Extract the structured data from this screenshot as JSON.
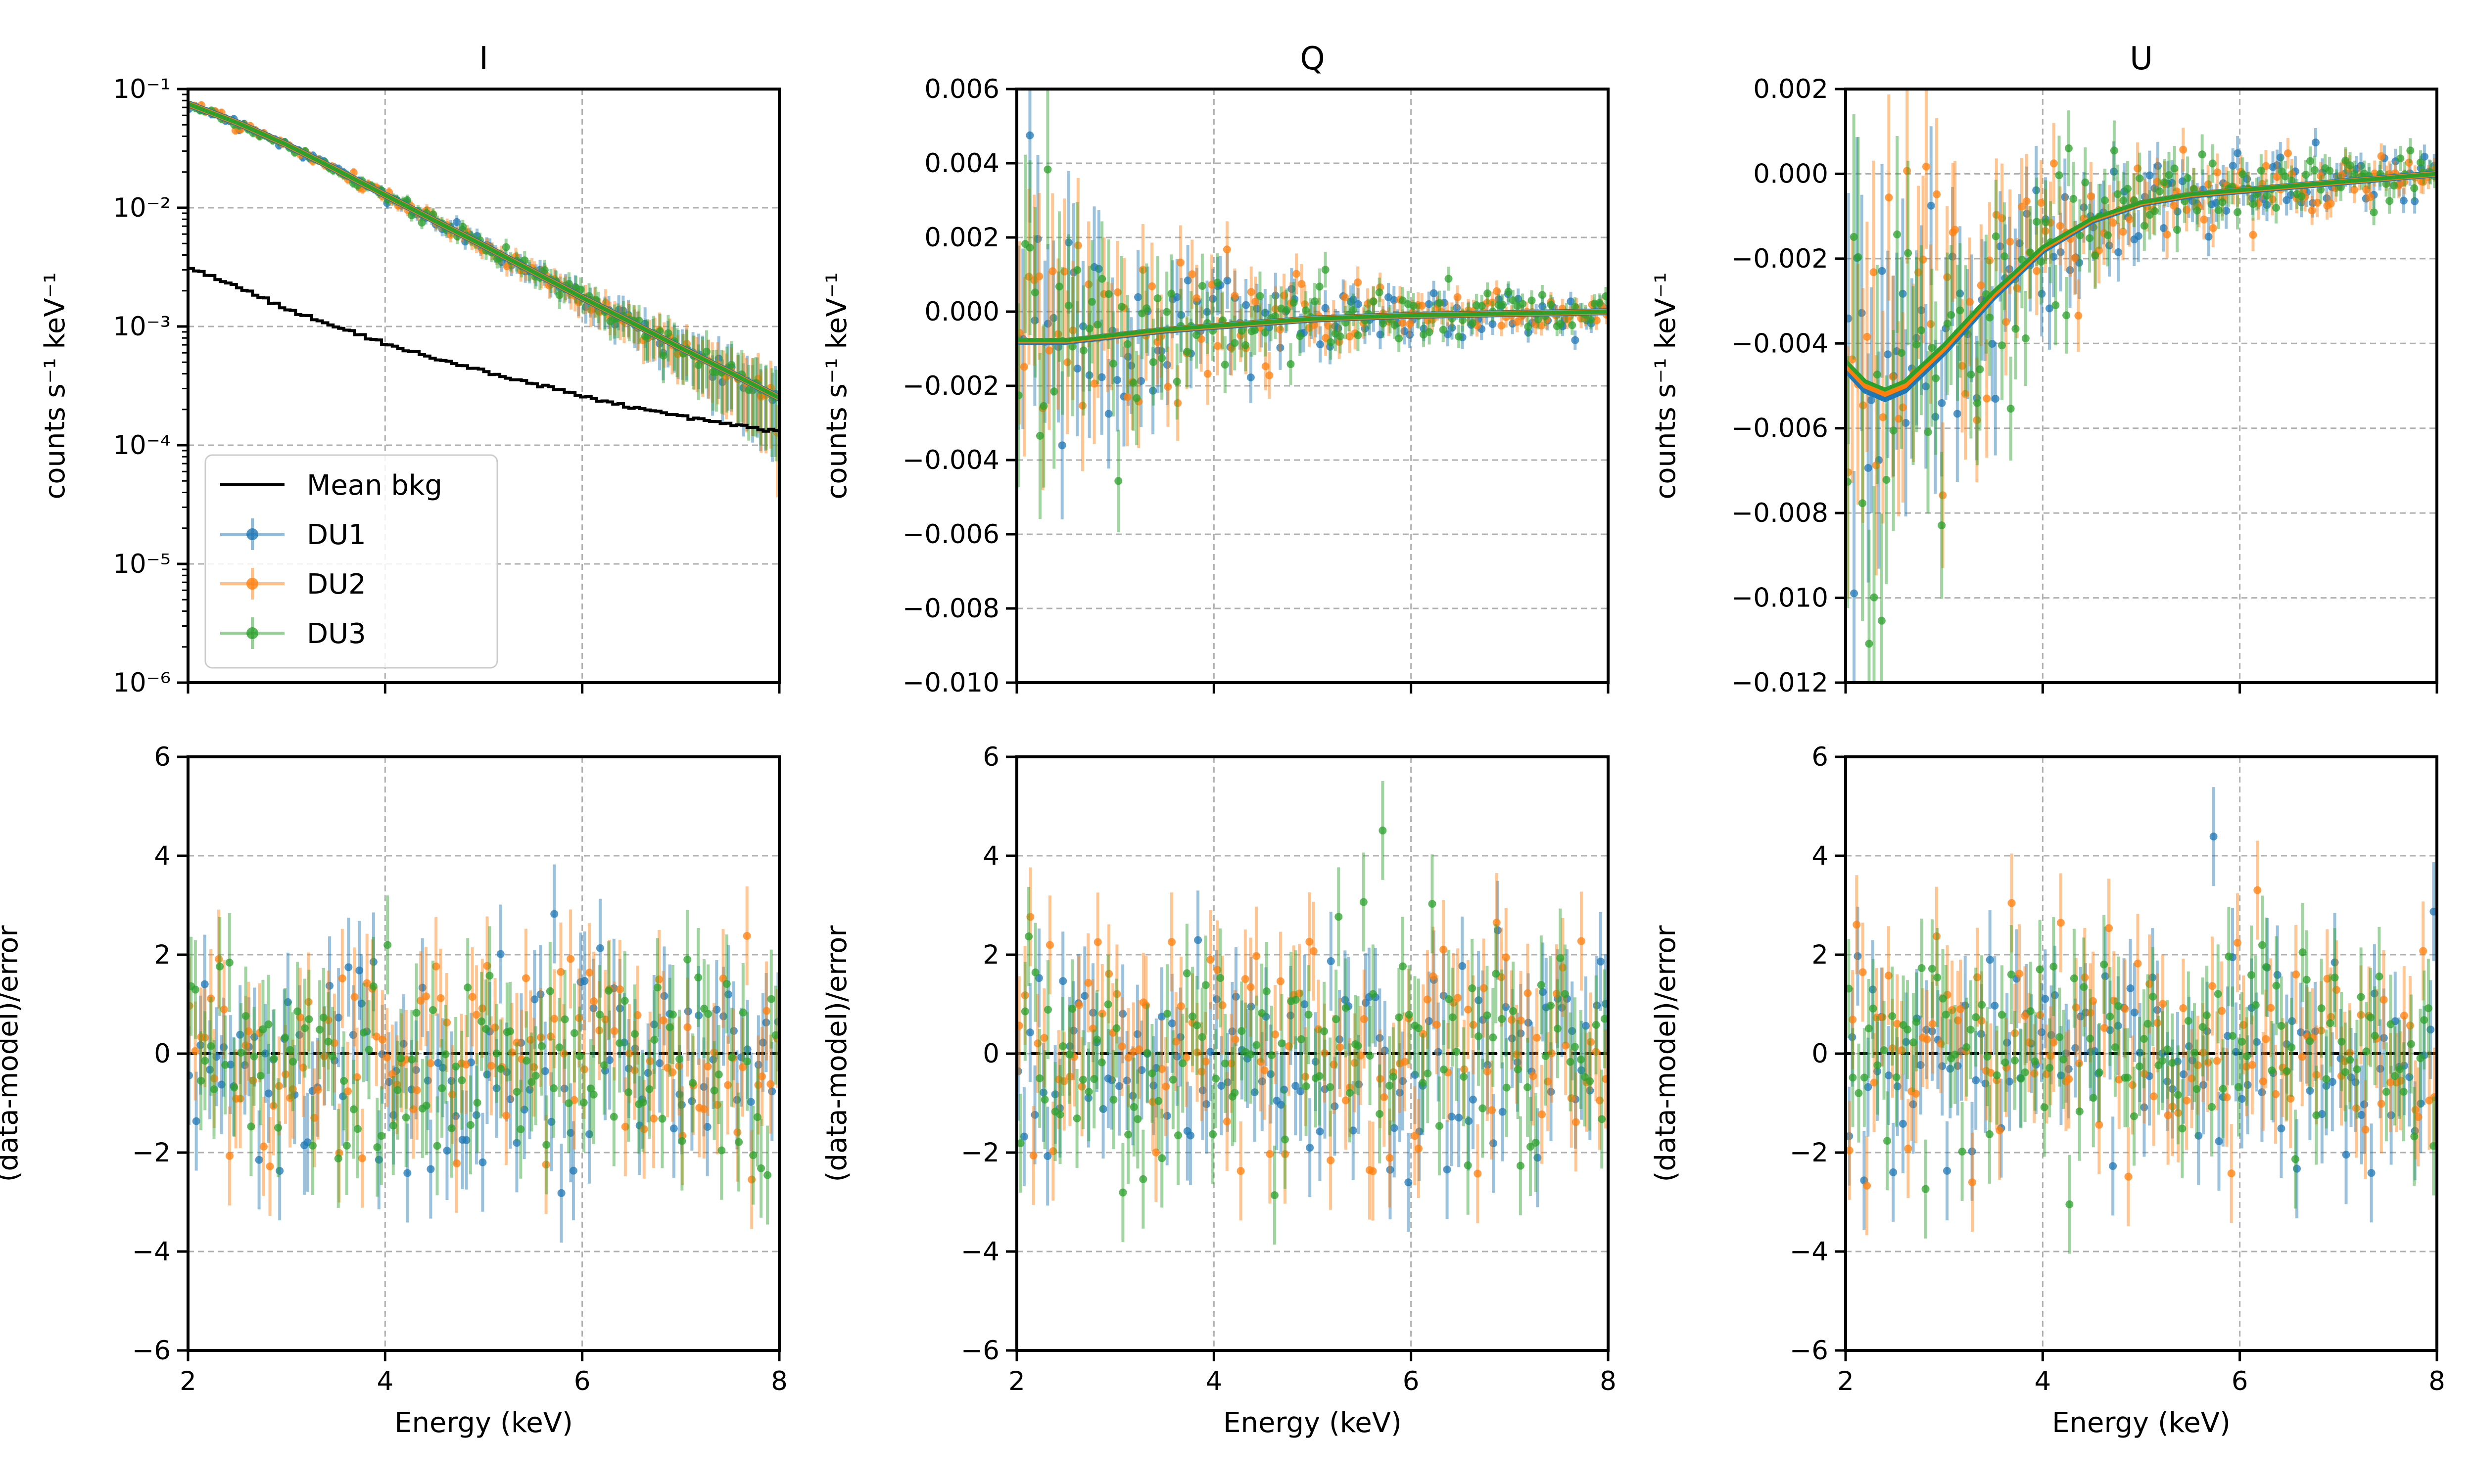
{
  "chart_data": {
    "type": "scatter",
    "colors": {
      "DU1": "#1f77b4",
      "DU2": "#ff7f0e",
      "DU3": "#2ca02c",
      "bkg": "#000000",
      "grid": "#b0b0b0"
    },
    "legend": {
      "placement": "lower-left",
      "entries": [
        "Mean bkg",
        "DU1",
        "DU2",
        "DU3"
      ]
    },
    "xlabel": "Energy (keV)",
    "xlim": [
      2,
      8
    ],
    "xticks": [
      2,
      4,
      6,
      8
    ],
    "xtick_labels": [
      "2",
      "4",
      "6",
      "8"
    ],
    "panels": [
      {
        "id": "I",
        "title": "I",
        "ylabel": "counts s⁻¹ keV⁻¹",
        "scale": "log",
        "ylim": [
          1e-06,
          0.1
        ],
        "yticks": [
          1e-06,
          1e-05,
          0.0001,
          0.001,
          0.01,
          0.1
        ],
        "ytick_labels": [
          "10⁻⁶",
          "10⁻⁵",
          "10⁻⁴",
          "10⁻³",
          "10⁻²",
          "10⁻¹"
        ],
        "model_points": [
          [
            2.0,
            0.075
          ],
          [
            2.5,
            0.052
          ],
          [
            3.0,
            0.034
          ],
          [
            3.5,
            0.021
          ],
          [
            4.0,
            0.0128
          ],
          [
            4.5,
            0.0078
          ],
          [
            5.0,
            0.0048
          ],
          [
            5.5,
            0.0029
          ],
          [
            6.0,
            0.00175
          ],
          [
            6.5,
            0.00108
          ],
          [
            7.0,
            0.00066
          ],
          [
            7.5,
            0.00041
          ],
          [
            8.0,
            0.00025
          ]
        ],
        "bkg_points": [
          [
            2.0,
            0.0032
          ],
          [
            2.5,
            0.0022
          ],
          [
            3.0,
            0.0014
          ],
          [
            3.5,
            0.001
          ],
          [
            4.0,
            0.00072
          ],
          [
            4.5,
            0.00054
          ],
          [
            5.0,
            0.00042
          ],
          [
            5.5,
            0.00033
          ],
          [
            6.0,
            0.00026
          ],
          [
            6.5,
            0.00021
          ],
          [
            7.0,
            0.000175
          ],
          [
            7.5,
            0.00015
          ],
          [
            8.0,
            0.00013
          ]
        ],
        "scatter": 0.03,
        "err": 0.08
      },
      {
        "id": "Q",
        "title": "Q",
        "ylabel": "counts s⁻¹ keV⁻¹",
        "scale": "linear",
        "ylim": [
          -0.01,
          0.006
        ],
        "yticks": [
          -0.01,
          -0.008,
          -0.006,
          -0.004,
          -0.002,
          0.0,
          0.002,
          0.004,
          0.006
        ],
        "ytick_labels": [
          "−0.010",
          "−0.008",
          "−0.006",
          "−0.004",
          "−0.002",
          "0.000",
          "0.002",
          "0.004",
          "0.006"
        ],
        "model_points": [
          [
            2.0,
            -0.0008
          ],
          [
            2.5,
            -0.0008
          ],
          [
            3.0,
            -0.00065
          ],
          [
            3.5,
            -0.0005
          ],
          [
            4.0,
            -0.0004
          ],
          [
            4.5,
            -0.0003
          ],
          [
            5.0,
            -0.0002
          ],
          [
            5.5,
            -0.00015
          ],
          [
            6.0,
            -0.0001
          ],
          [
            6.5,
            -8e-05
          ],
          [
            7.0,
            -5e-05
          ],
          [
            7.5,
            -3e-05
          ],
          [
            8.0,
            0.0
          ]
        ],
        "err_points": [
          [
            2.0,
            0.0025
          ],
          [
            3.0,
            0.0014
          ],
          [
            4.0,
            0.0008
          ],
          [
            5.0,
            0.0005
          ],
          [
            6.0,
            0.00035
          ],
          [
            7.0,
            0.00028
          ],
          [
            8.0,
            0.00025
          ]
        ]
      },
      {
        "id": "U",
        "title": "U",
        "ylabel": "counts s⁻¹ keV⁻¹",
        "scale": "linear",
        "ylim": [
          -0.012,
          0.002
        ],
        "yticks": [
          -0.012,
          -0.01,
          -0.008,
          -0.006,
          -0.004,
          -0.002,
          0.0,
          0.002
        ],
        "ytick_labels": [
          "−0.012",
          "−0.010",
          "−0.008",
          "−0.006",
          "−0.004",
          "−0.002",
          "0.000",
          "0.002"
        ],
        "model_points": [
          [
            2.0,
            -0.0046
          ],
          [
            2.2,
            -0.0051
          ],
          [
            2.4,
            -0.0053
          ],
          [
            2.6,
            -0.0051
          ],
          [
            3.0,
            -0.0042
          ],
          [
            3.5,
            -0.0029
          ],
          [
            4.0,
            -0.0018
          ],
          [
            4.5,
            -0.0011
          ],
          [
            5.0,
            -0.0007
          ],
          [
            5.5,
            -0.0005
          ],
          [
            6.0,
            -0.0004
          ],
          [
            6.5,
            -0.0003
          ],
          [
            7.0,
            -0.0002
          ],
          [
            7.5,
            -0.0001
          ],
          [
            8.0,
            0.0
          ]
        ],
        "err_points": [
          [
            2.0,
            0.003
          ],
          [
            3.0,
            0.0017
          ],
          [
            4.0,
            0.001
          ],
          [
            5.0,
            0.0006
          ],
          [
            6.0,
            0.0004
          ],
          [
            7.0,
            0.00032
          ],
          [
            8.0,
            0.00028
          ]
        ]
      },
      {
        "id": "I-res",
        "title": "",
        "ylabel": "(data-model)/error",
        "scale": "linear",
        "ylim": [
          -6,
          6
        ],
        "residual": true,
        "yticks": [
          -6,
          -4,
          -2,
          0,
          2,
          4,
          6
        ],
        "ytick_labels": [
          "−6",
          "−4",
          "−2",
          "0",
          "2",
          "4",
          "6"
        ]
      },
      {
        "id": "Q-res",
        "title": "",
        "ylabel": "(data-model)/error",
        "scale": "linear",
        "ylim": [
          -6,
          6
        ],
        "residual": true,
        "yticks": [
          -6,
          -4,
          -2,
          0,
          2,
          4,
          6
        ],
        "ytick_labels": [
          "−6",
          "−4",
          "−2",
          "0",
          "2",
          "4",
          "6"
        ]
      },
      {
        "id": "U-res",
        "title": "",
        "ylabel": "(data-model)/error",
        "scale": "linear",
        "ylim": [
          -6,
          6
        ],
        "residual": true,
        "yticks": [
          -6,
          -4,
          -2,
          0,
          2,
          4,
          6
        ],
        "ytick_labels": [
          "−6",
          "−4",
          "−2",
          "0",
          "2",
          "4",
          "6"
        ]
      }
    ],
    "series": [
      {
        "name": "DU1",
        "n_points": 120
      },
      {
        "name": "DU2",
        "n_points": 120
      },
      {
        "name": "DU3",
        "n_points": 120
      }
    ]
  }
}
